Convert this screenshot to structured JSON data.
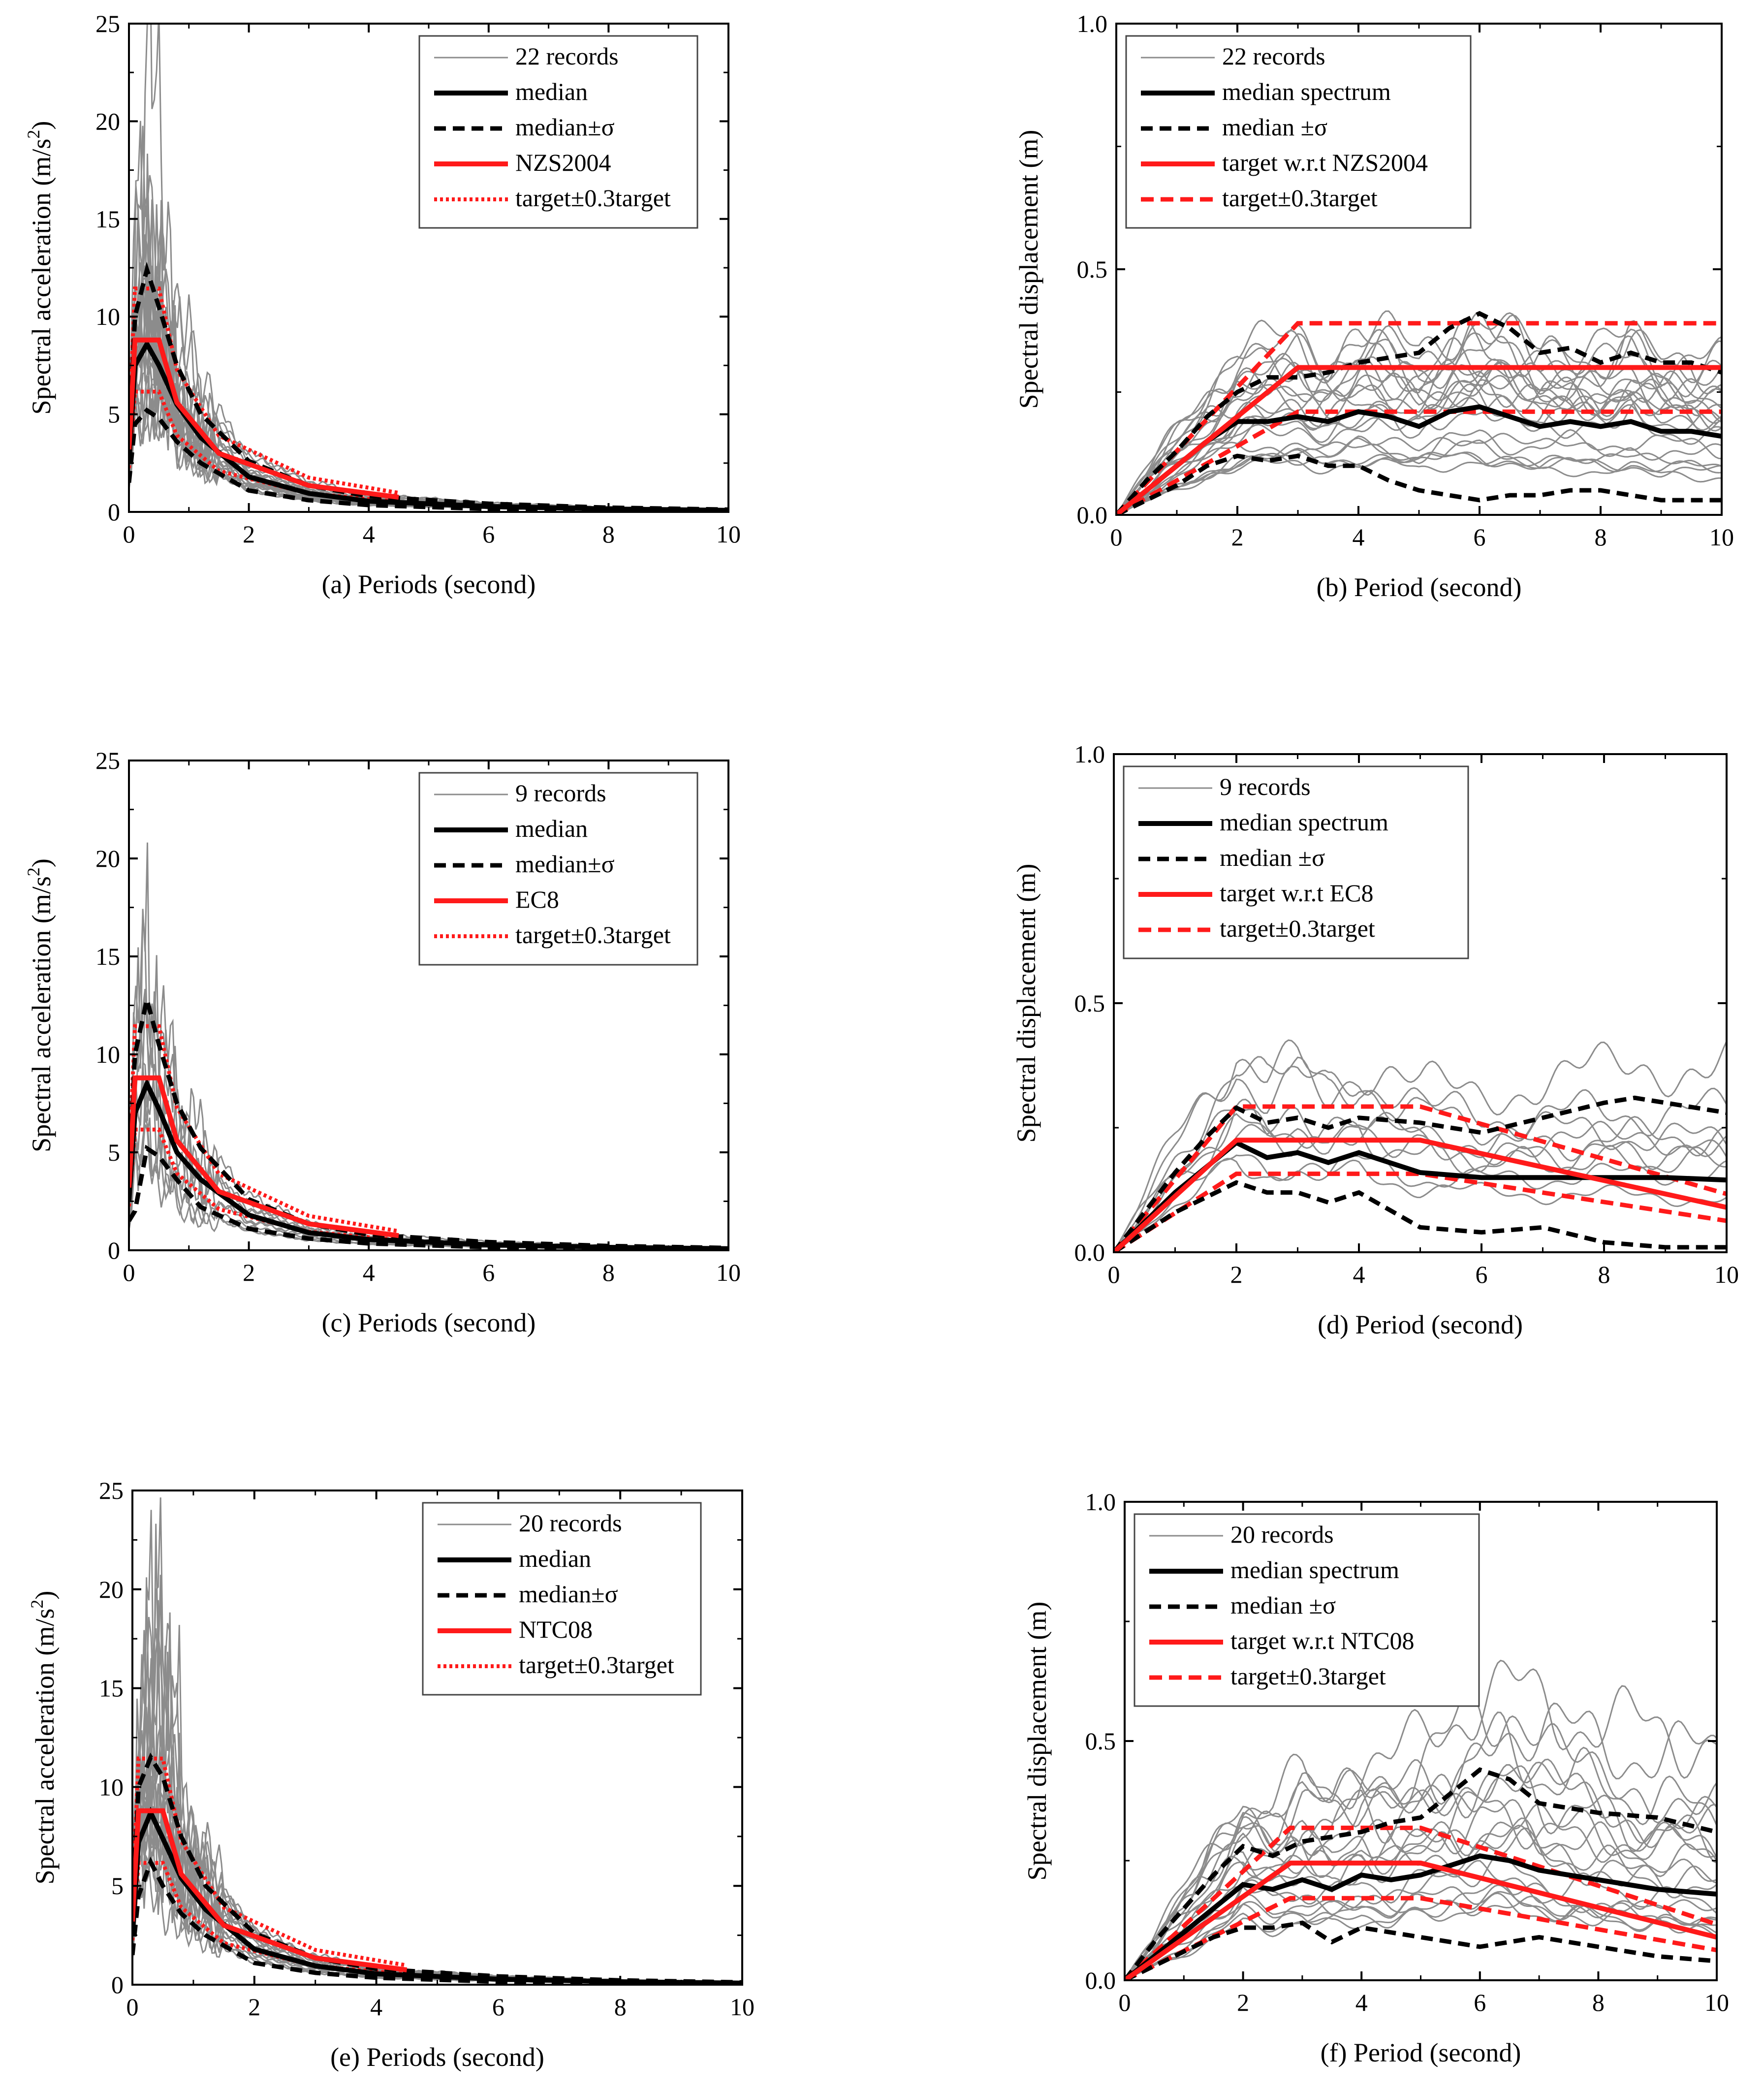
{
  "colors": {
    "record": "#8c8c8c",
    "median": "#000000",
    "target": "#ff1a1a"
  },
  "chart_data": [
    {
      "id": "a",
      "type": "line",
      "kind": "acc",
      "caption": "(a) Periods (second)",
      "ylabel": "Spectral acceleration (m/s",
      "ylabel_sup": "2",
      "ylabel_close": ")",
      "xlim": [
        0,
        10
      ],
      "ylim": [
        0,
        25
      ],
      "xticks": [
        "0",
        "2",
        "4",
        "6",
        "8",
        "10"
      ],
      "yticks": [
        "0",
        "5",
        "10",
        "15",
        "20",
        "25"
      ],
      "legend": [
        "22 records",
        "median",
        "median±σ",
        "NZS2004",
        "target±0.3target"
      ],
      "record_count": 22,
      "target": {
        "T": [
          0,
          0.1,
          0.5,
          0.8,
          1.5,
          3.0,
          4.5
        ],
        "Sa": [
          3.2,
          8.8,
          8.8,
          5.6,
          3.0,
          1.35,
          0.75
        ]
      },
      "median": {
        "T": [
          0,
          0.1,
          0.3,
          0.5,
          0.8,
          1.2,
          2,
          3,
          4,
          6,
          8,
          10
        ],
        "Sa": [
          2.5,
          7.5,
          8.6,
          7.5,
          5.5,
          3.8,
          1.8,
          0.95,
          0.55,
          0.28,
          0.15,
          0.08
        ]
      },
      "median_plus": {
        "T": [
          0,
          0.1,
          0.3,
          0.5,
          0.8,
          1.2,
          2,
          3,
          4,
          6,
          8,
          10
        ],
        "Sa": [
          3.5,
          10,
          12.4,
          10.5,
          7.5,
          5.0,
          2.6,
          1.35,
          0.8,
          0.42,
          0.22,
          0.12
        ]
      },
      "median_minus": {
        "T": [
          0,
          0.1,
          0.3,
          0.5,
          0.8,
          1.2,
          2,
          3,
          4,
          6,
          8,
          10
        ],
        "Sa": [
          1.5,
          4.5,
          5.2,
          4.8,
          3.6,
          2.5,
          1.1,
          0.6,
          0.35,
          0.15,
          0.08,
          0.04
        ]
      }
    },
    {
      "id": "b",
      "type": "line",
      "kind": "disp",
      "caption": "(b) Period (second)",
      "ylabel": "Spectral displacement (m)",
      "xlim": [
        0,
        10
      ],
      "ylim": [
        0,
        1.0
      ],
      "xticks": [
        "0",
        "2",
        "4",
        "6",
        "8",
        "10"
      ],
      "yticks": [
        "0.0",
        "0.5",
        "1.0"
      ],
      "legend": [
        "22 records",
        "median spectrum",
        "median ±σ",
        "target w.r.t NZS2004",
        "target±0.3target"
      ],
      "record_count": 22,
      "target": {
        "T": [
          0,
          3,
          10
        ],
        "Sd": [
          0,
          0.3,
          0.3
        ]
      },
      "median": {
        "T": [
          0,
          0.5,
          1,
          1.5,
          2,
          2.5,
          3,
          3.5,
          4,
          4.5,
          5,
          5.5,
          6,
          6.5,
          7,
          7.5,
          8,
          8.5,
          9,
          9.5,
          10
        ],
        "Sd": [
          0,
          0.05,
          0.1,
          0.15,
          0.19,
          0.19,
          0.2,
          0.19,
          0.21,
          0.2,
          0.18,
          0.21,
          0.22,
          0.2,
          0.18,
          0.19,
          0.18,
          0.19,
          0.17,
          0.17,
          0.16
        ]
      },
      "median_plus": {
        "T": [
          0,
          0.5,
          1,
          1.5,
          2,
          2.5,
          3,
          3.5,
          4,
          4.5,
          5,
          5.5,
          6,
          6.5,
          7,
          7.5,
          8,
          8.5,
          9,
          9.5,
          10
        ],
        "Sd": [
          0,
          0.07,
          0.13,
          0.2,
          0.25,
          0.28,
          0.28,
          0.29,
          0.31,
          0.32,
          0.33,
          0.38,
          0.41,
          0.38,
          0.33,
          0.34,
          0.31,
          0.33,
          0.31,
          0.31,
          0.29
        ]
      },
      "median_minus": {
        "T": [
          0,
          0.5,
          1,
          1.5,
          2,
          2.5,
          3,
          3.5,
          4,
          4.5,
          5,
          5.5,
          6,
          6.5,
          7,
          7.5,
          8,
          8.5,
          9,
          9.5,
          10
        ],
        "Sd": [
          0,
          0.03,
          0.06,
          0.1,
          0.12,
          0.11,
          0.12,
          0.1,
          0.1,
          0.07,
          0.05,
          0.04,
          0.03,
          0.04,
          0.04,
          0.05,
          0.05,
          0.04,
          0.03,
          0.03,
          0.03
        ]
      }
    },
    {
      "id": "c",
      "type": "line",
      "kind": "acc",
      "caption": "(c) Periods (second)",
      "ylabel": "Spectral acceleration (m/s",
      "ylabel_sup": "2",
      "ylabel_close": ")",
      "xlim": [
        0,
        10
      ],
      "ylim": [
        0,
        25
      ],
      "xticks": [
        "0",
        "2",
        "4",
        "6",
        "8",
        "10"
      ],
      "yticks": [
        "0",
        "5",
        "10",
        "15",
        "20",
        "25"
      ],
      "legend": [
        "9 records",
        "median",
        "median±σ",
        "EC8",
        "target±0.3target"
      ],
      "record_count": 9,
      "target": {
        "T": [
          0,
          0.1,
          0.5,
          0.8,
          1.5,
          3.0,
          4.5
        ],
        "Sa": [
          3.2,
          8.8,
          8.8,
          5.6,
          3.0,
          1.35,
          0.75
        ]
      },
      "median": {
        "T": [
          0,
          0.1,
          0.3,
          0.5,
          0.8,
          1.2,
          2,
          3,
          4,
          6,
          8,
          10
        ],
        "Sa": [
          2.5,
          7.0,
          8.5,
          7.2,
          5.0,
          3.6,
          1.8,
          0.9,
          0.55,
          0.28,
          0.15,
          0.08
        ]
      },
      "median_plus": {
        "T": [
          0,
          0.1,
          0.3,
          0.5,
          0.8,
          1.2,
          2,
          3,
          4,
          6,
          8,
          10
        ],
        "Sa": [
          3.5,
          10,
          12.8,
          10.5,
          7.5,
          5.2,
          2.6,
          1.35,
          0.8,
          0.42,
          0.22,
          0.12
        ]
      },
      "median_minus": {
        "T": [
          0,
          0.1,
          0.3,
          0.5,
          0.8,
          1.2,
          2,
          3,
          4,
          6,
          8,
          10
        ],
        "Sa": [
          1.5,
          2.0,
          5.2,
          4.8,
          3.6,
          2.2,
          1.1,
          0.6,
          0.35,
          0.15,
          0.08,
          0.04
        ]
      }
    },
    {
      "id": "d",
      "type": "line",
      "kind": "disp",
      "caption": "(d) Period (second)",
      "ylabel": "Spectral displacement (m)",
      "xlim": [
        0,
        10
      ],
      "ylim": [
        0,
        1.0
      ],
      "xticks": [
        "0",
        "2",
        "4",
        "6",
        "8",
        "10"
      ],
      "yticks": [
        "0.0",
        "0.5",
        "1.0"
      ],
      "legend": [
        "9 records",
        "median spectrum",
        "median ±σ",
        "target w.r.t EC8",
        "target±0.3target"
      ],
      "record_count": 9,
      "target": {
        "T": [
          0,
          2,
          5,
          10
        ],
        "Sd": [
          0,
          0.225,
          0.225,
          0.09
        ]
      },
      "median": {
        "T": [
          0,
          0.5,
          1,
          1.5,
          2,
          2.5,
          3,
          3.5,
          4,
          5,
          6,
          7,
          8,
          9,
          10
        ],
        "Sd": [
          0,
          0.06,
          0.12,
          0.17,
          0.22,
          0.19,
          0.2,
          0.18,
          0.2,
          0.16,
          0.15,
          0.15,
          0.15,
          0.15,
          0.145
        ]
      },
      "median_plus": {
        "T": [
          0,
          0.5,
          1,
          1.5,
          2,
          2.5,
          3,
          3.5,
          4,
          5,
          6,
          7,
          8,
          8.5,
          9,
          10
        ],
        "Sd": [
          0,
          0.08,
          0.16,
          0.23,
          0.29,
          0.26,
          0.27,
          0.25,
          0.27,
          0.26,
          0.24,
          0.27,
          0.3,
          0.31,
          0.3,
          0.28
        ]
      },
      "median_minus": {
        "T": [
          0,
          0.5,
          1,
          1.5,
          2,
          2.5,
          3,
          3.5,
          4,
          5,
          6,
          7,
          8,
          9,
          10
        ],
        "Sd": [
          0,
          0.04,
          0.08,
          0.11,
          0.14,
          0.12,
          0.12,
          0.1,
          0.12,
          0.05,
          0.04,
          0.05,
          0.02,
          0.01,
          0.01
        ]
      }
    },
    {
      "id": "e",
      "type": "line",
      "kind": "acc",
      "caption": "(e) Periods (second)",
      "ylabel": "Spectral acceleration (m/s",
      "ylabel_sup": "2",
      "ylabel_close": ")",
      "xlim": [
        0,
        10
      ],
      "ylim": [
        0,
        25
      ],
      "xticks": [
        "0",
        "2",
        "4",
        "6",
        "8",
        "10"
      ],
      "yticks": [
        "0",
        "5",
        "10",
        "15",
        "20",
        "25"
      ],
      "legend": [
        "20 records",
        "median",
        "median±σ",
        "NTC08",
        "target±0.3target"
      ],
      "record_count": 20,
      "target": {
        "T": [
          0,
          0.1,
          0.5,
          0.8,
          1.5,
          3.0,
          4.5
        ],
        "Sa": [
          3.2,
          8.8,
          8.8,
          5.6,
          3.0,
          1.35,
          0.75
        ]
      },
      "median": {
        "T": [
          0,
          0.1,
          0.3,
          0.5,
          0.8,
          1.2,
          2,
          3,
          4,
          6,
          8,
          10
        ],
        "Sa": [
          2.5,
          7.2,
          8.7,
          7.4,
          5.4,
          3.8,
          1.8,
          0.95,
          0.55,
          0.28,
          0.15,
          0.08
        ]
      },
      "median_plus": {
        "T": [
          0,
          0.1,
          0.3,
          0.5,
          0.8,
          1.2,
          2,
          3,
          4,
          6,
          8,
          10
        ],
        "Sa": [
          3.5,
          10,
          11.5,
          10.5,
          7.5,
          5.0,
          2.6,
          1.35,
          0.8,
          0.42,
          0.22,
          0.12
        ]
      },
      "median_minus": {
        "T": [
          0,
          0.1,
          0.3,
          0.5,
          0.8,
          1.2,
          2,
          3,
          4,
          6,
          8,
          10
        ],
        "Sa": [
          1.5,
          4.5,
          6.2,
          5.0,
          3.6,
          2.5,
          1.1,
          0.6,
          0.35,
          0.15,
          0.08,
          0.04
        ]
      }
    },
    {
      "id": "f",
      "type": "line",
      "kind": "disp",
      "caption": "(f) Period (second)",
      "ylabel": "Spectral displacement (m)",
      "xlim": [
        0,
        10
      ],
      "ylim": [
        0,
        1.0
      ],
      "xticks": [
        "0",
        "2",
        "4",
        "6",
        "8",
        "10"
      ],
      "yticks": [
        "0.0",
        "0.5",
        "1.0"
      ],
      "legend": [
        "20 records",
        "median spectrum",
        "median ±σ",
        "target w.r.t NTC08",
        "target±0.3target"
      ],
      "record_count": 20,
      "target": {
        "T": [
          0,
          2.8,
          5,
          10
        ],
        "Sd": [
          0,
          0.245,
          0.245,
          0.09
        ]
      },
      "median": {
        "T": [
          0,
          0.5,
          1,
          1.5,
          2,
          2.5,
          3,
          3.5,
          4,
          4.5,
          5,
          5.5,
          6,
          6.5,
          7,
          8,
          9,
          10
        ],
        "Sd": [
          0,
          0.05,
          0.1,
          0.15,
          0.2,
          0.19,
          0.21,
          0.19,
          0.22,
          0.21,
          0.22,
          0.24,
          0.26,
          0.25,
          0.23,
          0.21,
          0.19,
          0.18
        ]
      },
      "median_plus": {
        "T": [
          0,
          0.5,
          1,
          1.5,
          2,
          2.5,
          3,
          3.5,
          4,
          4.5,
          5,
          5.5,
          6,
          6.5,
          7,
          8,
          9,
          10
        ],
        "Sd": [
          0,
          0.08,
          0.15,
          0.22,
          0.28,
          0.26,
          0.29,
          0.3,
          0.31,
          0.33,
          0.34,
          0.39,
          0.44,
          0.42,
          0.37,
          0.35,
          0.34,
          0.31
        ]
      },
      "median_minus": {
        "T": [
          0,
          0.5,
          1,
          1.5,
          2,
          2.5,
          3,
          3.5,
          4,
          4.5,
          5,
          5.5,
          6,
          6.5,
          7,
          8,
          9,
          10
        ],
        "Sd": [
          0,
          0.03,
          0.06,
          0.09,
          0.11,
          0.11,
          0.12,
          0.08,
          0.11,
          0.1,
          0.09,
          0.08,
          0.07,
          0.08,
          0.09,
          0.07,
          0.05,
          0.04
        ]
      }
    }
  ]
}
